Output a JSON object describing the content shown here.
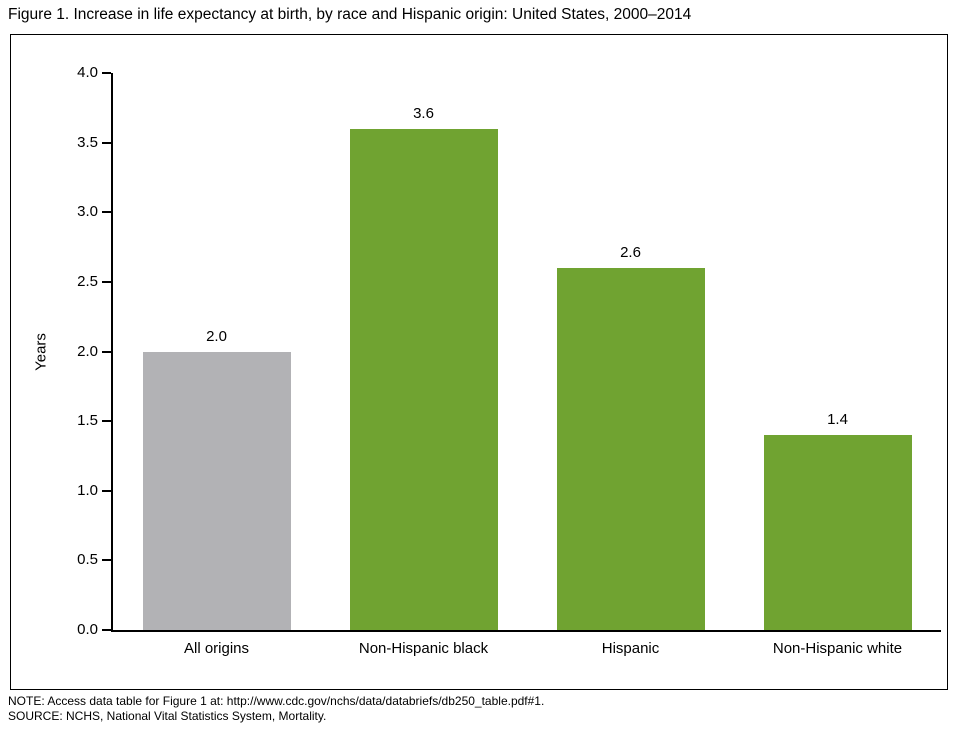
{
  "figure": {
    "title": "Figure 1. Increase in life expectancy at birth, by race and Hispanic origin: United States, 2000–2014",
    "notes": [
      "NOTE: Access data table for Figure 1 at: http://www.cdc.gov/nchs/data/databriefs/db250_table.pdf#1.",
      "SOURCE: NCHS, National Vital Statistics System, Mortality."
    ]
  },
  "chart_data": {
    "type": "bar",
    "title": "Figure 1. Increase in life expectancy at birth, by race and Hispanic origin: United States, 2000–2014",
    "categories": [
      "All origins",
      "Non-Hispanic black",
      "Hispanic",
      "Non-Hispanic white"
    ],
    "values": [
      2.0,
      3.6,
      2.6,
      1.4
    ],
    "bar_colors": [
      "#b2b2b5",
      "#70a331",
      "#70a331",
      "#70a331"
    ],
    "xlabel": "",
    "ylabel": "Years",
    "ylim": [
      0,
      4
    ],
    "tick_step": 0.5,
    "value_label_format": "one-decimal",
    "grid": false,
    "legend": "none"
  }
}
